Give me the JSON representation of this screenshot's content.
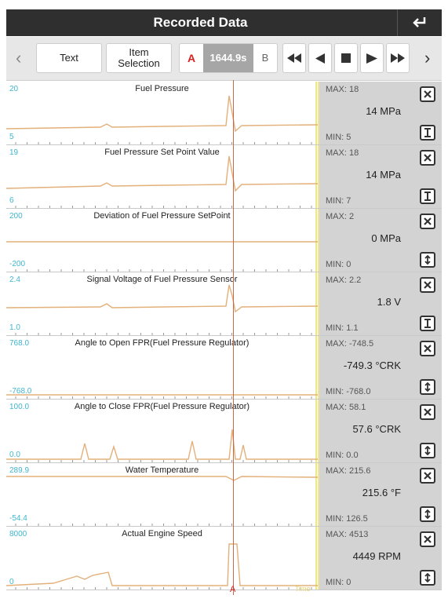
{
  "header": {
    "title": "Recorded Data",
    "back_icon": "return-icon"
  },
  "toolbar": {
    "text_label": "Text",
    "item_selection_label": "Item\nSelection",
    "marker_a": "A",
    "time": "1644.9s",
    "marker_b": "B",
    "controls": [
      "fast-rewind-icon",
      "step-back-icon",
      "stop-icon",
      "play-icon",
      "fast-forward-icon"
    ],
    "prev_icon": "chevron-left-icon",
    "next_icon": "chevron-right-icon"
  },
  "colors": {
    "trace": "#e3b07a",
    "axis_label": "#3fb6cf",
    "cursor": "#c9694a",
    "marker_a": "#d92020"
  },
  "cursor_marker": "A",
  "time_axis_label": "Time",
  "parameters": [
    {
      "name": "Fuel Pressure",
      "ymax": "20",
      "ymin": "5",
      "max": "MAX: 18",
      "value": "14 MPa",
      "min": "MIN: 5",
      "scale_icon": "fit-scale-icon"
    },
    {
      "name": "Fuel Pressure Set Point Value",
      "ymax": "19",
      "ymin": "6",
      "max": "MAX: 18",
      "value": "14 MPa",
      "min": "MIN: 7",
      "scale_icon": "fit-scale-icon"
    },
    {
      "name": "Deviation of Fuel Pressure SetPoint",
      "ymax": "200",
      "ymin": "-200",
      "max": "MAX: 2",
      "value": "0 MPa",
      "min": "MIN: 0",
      "scale_icon": "expand-scale-icon"
    },
    {
      "name": "Signal Voltage of Fuel Pressure Sensor",
      "ymax": "2.4",
      "ymin": "1.0",
      "max": "MAX: 2.2",
      "value": "1.8 V",
      "min": "MIN: 1.1",
      "scale_icon": "fit-scale-icon"
    },
    {
      "name": "Angle to Open FPR(Fuel Pressure Regulator)",
      "ymax": "768.0",
      "ymin": "-768.0",
      "max": "MAX: -748.5",
      "value": "-749.3 °CRK",
      "min": "MIN: -768.0",
      "scale_icon": "expand-scale-icon"
    },
    {
      "name": "Angle to Close FPR(Fuel Pressure Regulator)",
      "ymax": "100.0",
      "ymin": "0.0",
      "max": "MAX: 58.1",
      "value": "57.6 °CRK",
      "min": "MIN: 0.0",
      "scale_icon": "expand-scale-icon"
    },
    {
      "name": "Water Temperature",
      "ymax": "289.9",
      "ymin": "-54.4",
      "max": "MAX: 215.6",
      "value": "215.6 °F",
      "min": "MIN: 126.5",
      "scale_icon": "expand-scale-icon"
    },
    {
      "name": "Actual Engine Speed",
      "ymax": "8000",
      "ymin": "0",
      "max": "MAX: 4513",
      "value": "4449 RPM",
      "min": "MIN: 0",
      "scale_icon": "expand-scale-icon"
    }
  ]
}
